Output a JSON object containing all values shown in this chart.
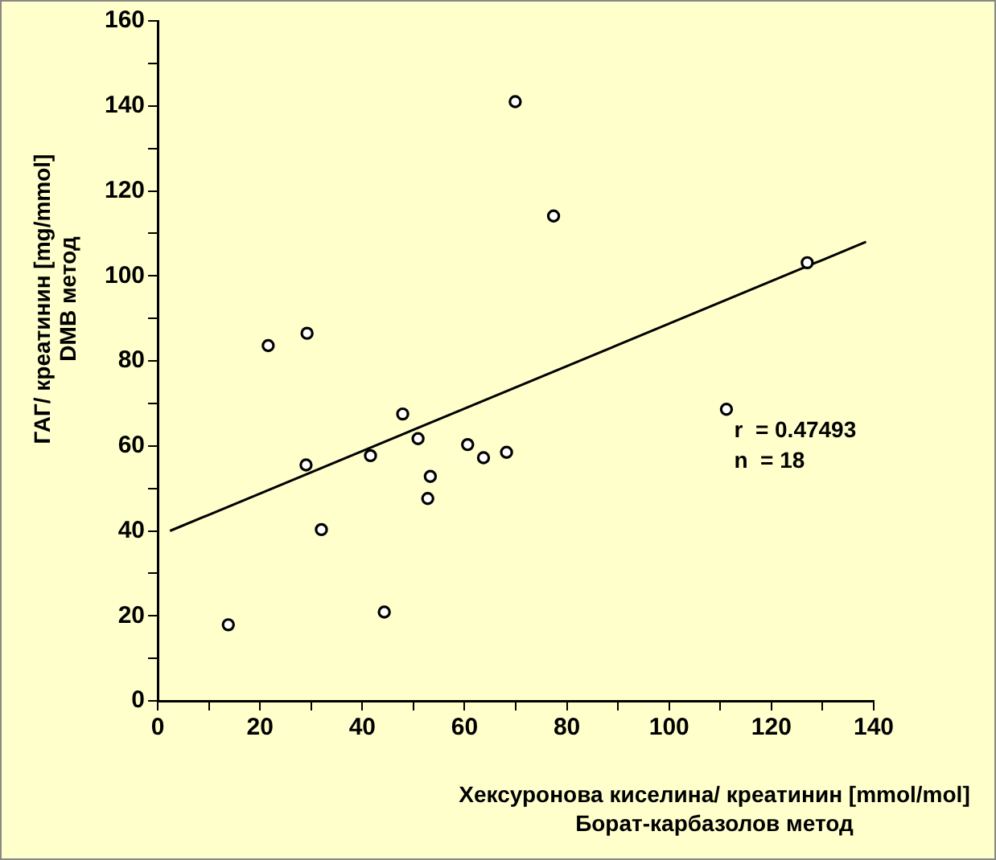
{
  "chart_data": {
    "type": "scatter",
    "xlabel": "Хексуронова киселина/ креатинин [mmol/mol]\nБорат-карбазолов метод",
    "ylabel": "ГАГ/ креатинин [mg/mmol]\nDMB метод",
    "x": [
      13.8,
      21.6,
      29.2,
      29.0,
      32.0,
      41.6,
      44.3,
      47.9,
      50.9,
      52.8,
      53.3,
      60.6,
      63.7,
      68.2,
      69.9,
      77.4,
      111.2,
      127.0
    ],
    "series": [
      {
        "color": "#000000",
        "values": [
          17.9,
          83.6,
          86.5,
          55.5,
          40.3,
          57.7,
          20.9,
          67.5,
          61.7,
          47.6,
          52.8,
          60.3,
          57.2,
          58.5,
          141.0,
          114.1,
          68.6,
          103.1
        ]
      },
      {
        "type": "line",
        "marker": "none",
        "color": "#000000",
        "x": [
          2.4,
          138.5
        ],
        "values": [
          40,
          108
        ]
      }
    ],
    "marker": "circle",
    "grid": false,
    "legend": false,
    "xlim": [
      0,
      140
    ],
    "ylim": [
      0,
      160
    ],
    "xticks": [
      0,
      {
        "value": 10,
        "label": null
      },
      20,
      {
        "value": 30,
        "label": null
      },
      40,
      {
        "value": 50,
        "label": null
      },
      60,
      {
        "value": 70,
        "label": null
      },
      80,
      {
        "value": 90,
        "label": null
      },
      100,
      {
        "value": 110,
        "label": null
      },
      120,
      {
        "value": 130,
        "label": null
      },
      140
    ],
    "yticks": [
      0,
      {
        "value": 10,
        "label": null
      },
      20,
      {
        "value": 30,
        "label": null
      },
      40,
      {
        "value": 50,
        "label": null
      },
      60,
      {
        "value": 70,
        "label": null
      },
      80,
      {
        "value": 90,
        "label": null
      },
      100,
      {
        "value": 110,
        "label": null
      },
      120,
      {
        "value": 130,
        "label": null
      },
      140,
      {
        "value": 150,
        "label": null
      },
      160
    ],
    "annotations": [
      "r  = 0.47493",
      "n  = 18"
    ]
  }
}
